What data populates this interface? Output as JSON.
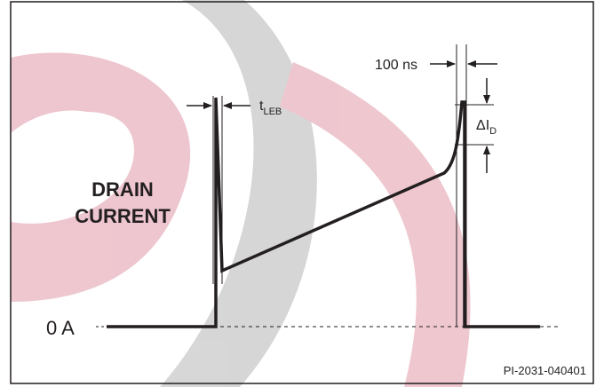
{
  "labels": {
    "drain": "DRAIN",
    "current": "CURRENT",
    "zero": "0 A",
    "time": "100 ns",
    "t_leb": {
      "main": "t",
      "sub": "LEB"
    },
    "delta_id": {
      "main": "ΔI",
      "sub": "D"
    }
  },
  "footer": {
    "code": "PI-2031-040401"
  }
}
